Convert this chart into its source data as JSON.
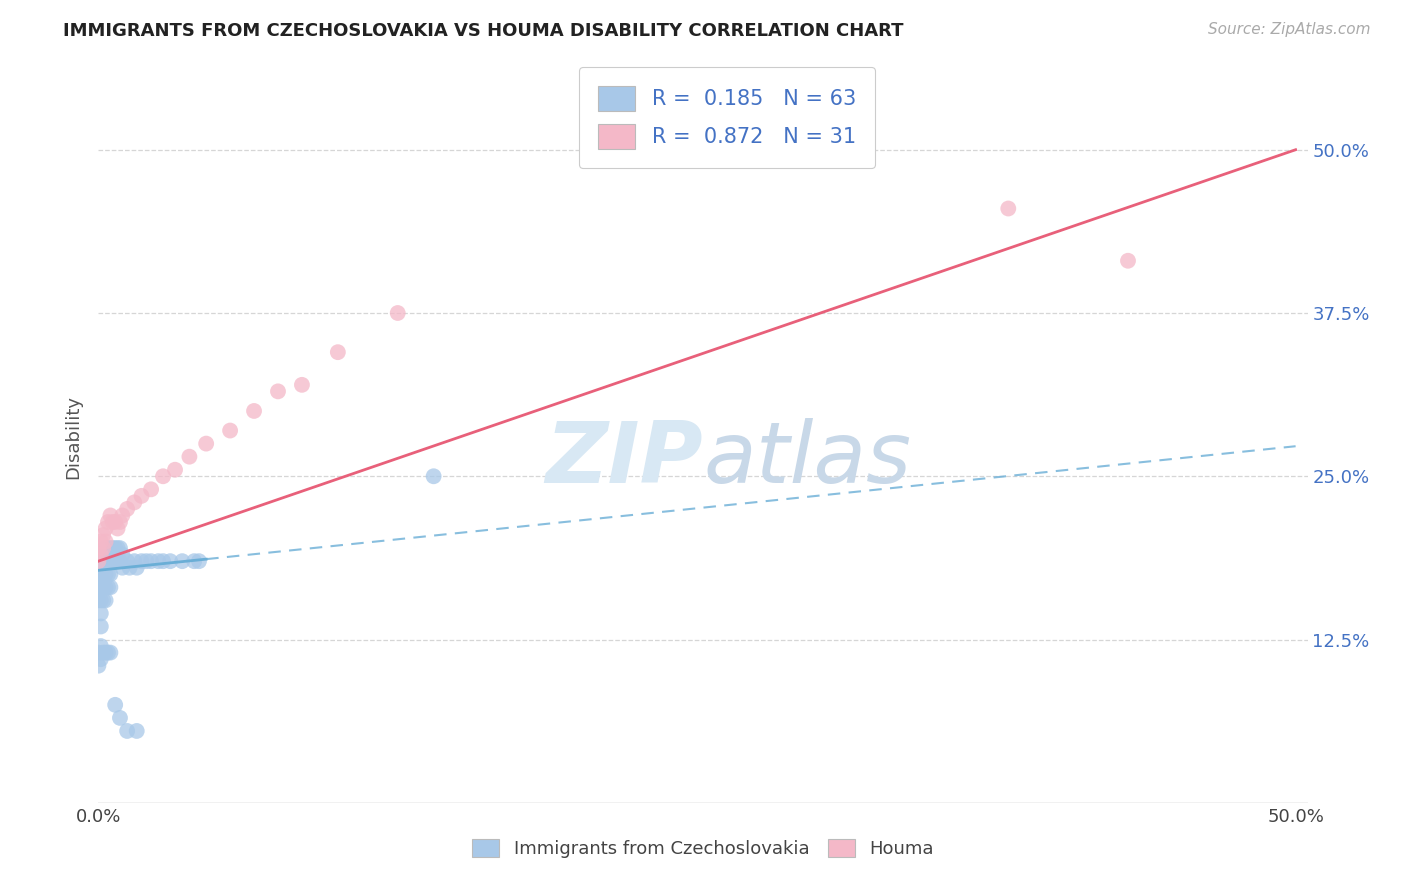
{
  "title": "IMMIGRANTS FROM CZECHOSLOVAKIA VS HOUMA DISABILITY CORRELATION CHART",
  "source": "Source: ZipAtlas.com",
  "ylabel": "Disability",
  "legend_label1": "Immigrants from Czechoslovakia",
  "legend_label2": "Houma",
  "R1": "0.185",
  "N1": "63",
  "R2": "0.872",
  "N2": "31",
  "color_blue": "#a8c8e8",
  "color_blue_line": "#6aaed6",
  "color_pink": "#f4b8c8",
  "color_pink_line": "#e8607a",
  "color_blue_text": "#4472c4",
  "watermark_color": "#d8e8f4",
  "background_color": "#ffffff",
  "grid_color": "#cccccc",
  "blue_line_intercept": 0.178,
  "blue_line_slope": 0.19,
  "blue_line_solid_end": 0.045,
  "pink_line_intercept": 0.185,
  "pink_line_slope": 0.63,
  "xlim": [
    0.0,
    0.505
  ],
  "ylim": [
    0.0,
    0.56
  ],
  "yticks": [
    0.125,
    0.25,
    0.375,
    0.5
  ],
  "ytick_labels": [
    "12.5%",
    "25.0%",
    "37.5%",
    "50.0%"
  ],
  "xtick_labels": [
    "0.0%",
    "50.0%"
  ],
  "xtick_pos": [
    0.0,
    0.5
  ],
  "scatter_blue_x": [
    0.0,
    0.0,
    0.0,
    0.001,
    0.001,
    0.001,
    0.001,
    0.001,
    0.001,
    0.002,
    0.002,
    0.002,
    0.002,
    0.002,
    0.003,
    0.003,
    0.003,
    0.003,
    0.003,
    0.004,
    0.004,
    0.004,
    0.004,
    0.005,
    0.005,
    0.005,
    0.005,
    0.006,
    0.006,
    0.007,
    0.007,
    0.008,
    0.008,
    0.009,
    0.009,
    0.01,
    0.01,
    0.012,
    0.013,
    0.015,
    0.016,
    0.018,
    0.02,
    0.022,
    0.025,
    0.027,
    0.03,
    0.035,
    0.04,
    0.042,
    0.0,
    0.0,
    0.001,
    0.001,
    0.002,
    0.003,
    0.004,
    0.005,
    0.007,
    0.009,
    0.012,
    0.016,
    0.14
  ],
  "scatter_blue_y": [
    0.175,
    0.165,
    0.155,
    0.185,
    0.175,
    0.165,
    0.155,
    0.145,
    0.135,
    0.19,
    0.18,
    0.17,
    0.165,
    0.155,
    0.195,
    0.185,
    0.175,
    0.165,
    0.155,
    0.195,
    0.185,
    0.175,
    0.165,
    0.195,
    0.185,
    0.175,
    0.165,
    0.195,
    0.185,
    0.195,
    0.185,
    0.195,
    0.185,
    0.195,
    0.185,
    0.19,
    0.18,
    0.185,
    0.18,
    0.185,
    0.18,
    0.185,
    0.185,
    0.185,
    0.185,
    0.185,
    0.185,
    0.185,
    0.185,
    0.185,
    0.115,
    0.105,
    0.12,
    0.11,
    0.115,
    0.115,
    0.115,
    0.115,
    0.075,
    0.065,
    0.055,
    0.055,
    0.25
  ],
  "scatter_pink_x": [
    0.0,
    0.0,
    0.001,
    0.001,
    0.002,
    0.002,
    0.003,
    0.003,
    0.004,
    0.005,
    0.006,
    0.007,
    0.008,
    0.009,
    0.01,
    0.012,
    0.015,
    0.018,
    0.022,
    0.027,
    0.032,
    0.038,
    0.045,
    0.055,
    0.065,
    0.075,
    0.085,
    0.1,
    0.125,
    0.38,
    0.43
  ],
  "scatter_pink_y": [
    0.195,
    0.185,
    0.2,
    0.19,
    0.205,
    0.195,
    0.21,
    0.2,
    0.215,
    0.22,
    0.215,
    0.215,
    0.21,
    0.215,
    0.22,
    0.225,
    0.23,
    0.235,
    0.24,
    0.25,
    0.255,
    0.265,
    0.275,
    0.285,
    0.3,
    0.315,
    0.32,
    0.345,
    0.375,
    0.455,
    0.415
  ]
}
